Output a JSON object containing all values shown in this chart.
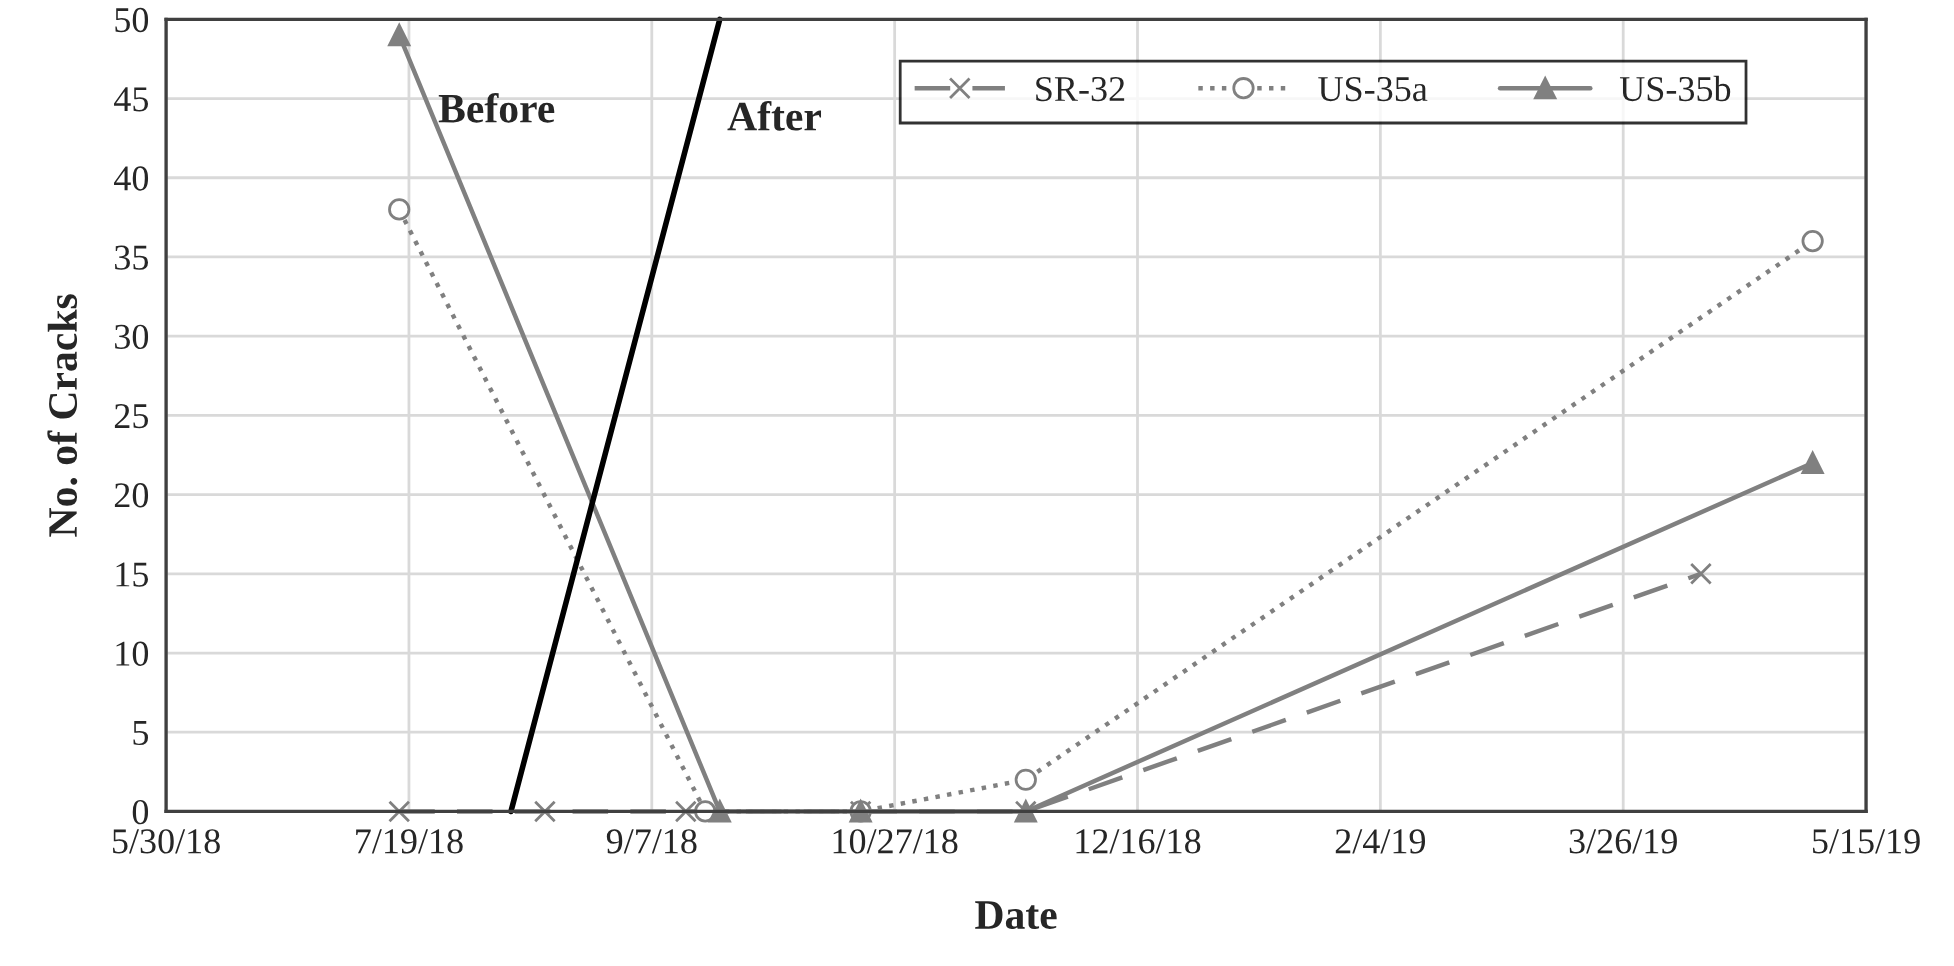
{
  "chart_data": {
    "type": "line",
    "xlabel": "Date",
    "ylabel": "No. of Cracks",
    "xlim": [
      "2018-05-30",
      "2019-05-15"
    ],
    "xticks": [
      {
        "value": "2018-05-30",
        "label": "5/30/18"
      },
      {
        "value": "2018-07-19",
        "label": "7/19/18"
      },
      {
        "value": "2018-09-07",
        "label": "9/7/18"
      },
      {
        "value": "2018-10-27",
        "label": "10/27/18"
      },
      {
        "value": "2018-12-16",
        "label": "12/16/18"
      },
      {
        "value": "2019-02-04",
        "label": "2/4/19"
      },
      {
        "value": "2019-03-26",
        "label": "3/26/19"
      },
      {
        "value": "2019-05-15",
        "label": "5/15/19"
      }
    ],
    "ylim": [
      0,
      50
    ],
    "yticks": [
      0,
      5,
      10,
      15,
      20,
      25,
      30,
      35,
      40,
      45,
      50
    ],
    "grid": true,
    "legend": "top right",
    "series": [
      {
        "name": "SR-32",
        "color": "#808080",
        "marker": "cross",
        "line_style": "dashed",
        "x": [
          "2018-07-17",
          "2018-08-16",
          "2018-09-14",
          "2018-10-20",
          "2018-11-23",
          "2019-04-11"
        ],
        "values": [
          0,
          0,
          0,
          0,
          0,
          15
        ]
      },
      {
        "name": "US-35a",
        "color": "#808080",
        "marker": "circle",
        "line_style": "dotted",
        "x": [
          "2018-07-17",
          "2018-09-18",
          "2018-10-20",
          "2018-11-23",
          "2019-05-04"
        ],
        "values": [
          38,
          0,
          0,
          2,
          36
        ]
      },
      {
        "name": "US-35b",
        "color": "#808080",
        "marker": "triangle",
        "line_style": "solid",
        "x": [
          "2018-07-17",
          "2018-09-21",
          "2018-10-20",
          "2018-11-23",
          "2019-05-04"
        ],
        "values": [
          49,
          0,
          0,
          0,
          22
        ]
      },
      {
        "color": "#000000",
        "marker": "none",
        "line_style": "solid",
        "x": [
          "2018-08-09",
          "2018-09-21"
        ],
        "values": [
          0,
          50
        ]
      }
    ],
    "annotations": [
      "Before",
      "After"
    ]
  }
}
